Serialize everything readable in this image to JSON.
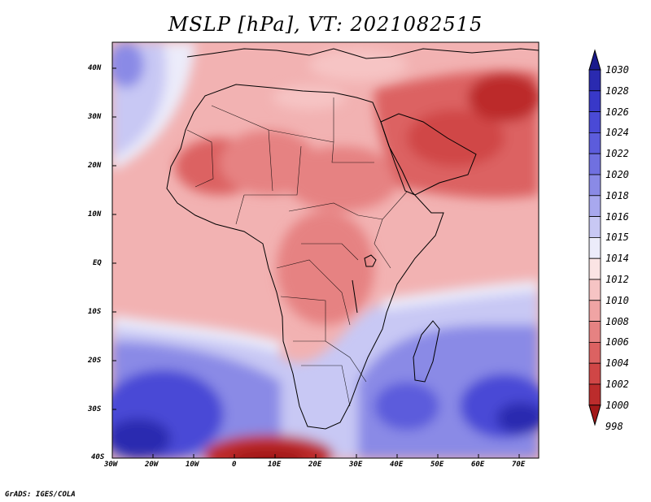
{
  "title": "MSLP [hPa], VT: 2021082515",
  "credit": "GrADS: IGES/COLA",
  "lon_labels": [
    "30W",
    "20W",
    "10W",
    "0",
    "10E",
    "20E",
    "30E",
    "40E",
    "50E",
    "60E",
    "70E"
  ],
  "lat_labels": [
    "40N",
    "30N",
    "20N",
    "10N",
    "EQ",
    "10S",
    "20S",
    "30S",
    "40S"
  ],
  "colorbar": {
    "levels": [
      "1030",
      "1028",
      "1026",
      "1024",
      "1022",
      "1020",
      "1018",
      "1016",
      "1015",
      "1014",
      "1012",
      "1010",
      "1008",
      "1006",
      "1004",
      "1002",
      "1000",
      "998"
    ],
    "colors": [
      "#1a1a8c",
      "#2a2ab0",
      "#3838c8",
      "#4a4ad6",
      "#5c5cdc",
      "#7070e0",
      "#8a8ae6",
      "#a8a8ee",
      "#c8c8f4",
      "#ececfa",
      "#fbe4e4",
      "#f6c4c4",
      "#f0a4a4",
      "#e68282",
      "#dc6262",
      "#d04646",
      "#bc2c2c",
      "#a21818"
    ]
  }
}
